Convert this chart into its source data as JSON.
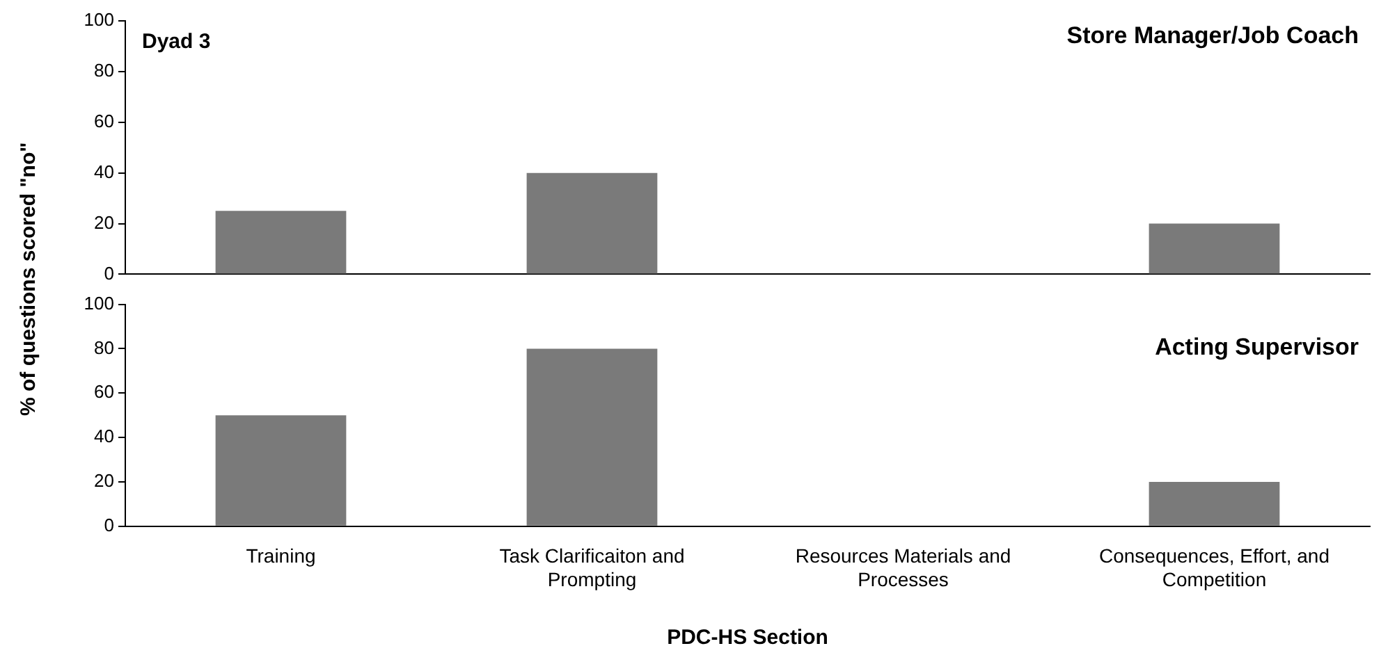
{
  "chart_data": [
    {
      "type": "bar",
      "title": "Store Manager/Job Coach",
      "annotations": [
        "Dyad 3"
      ],
      "categories": [
        null,
        null,
        null,
        null
      ],
      "values": [
        25,
        40,
        0,
        20
      ],
      "color": "#7a7a7a",
      "ylim": [
        0,
        100
      ],
      "yticks": [
        0,
        20,
        40,
        60,
        80,
        100
      ],
      "grid": false,
      "legend": false,
      "tick_labels": "y"
    },
    {
      "type": "bar",
      "title": "Acting Supervisor",
      "ylabel": "% of questions scored \"no\"",
      "xlabel": "PDC-HS Section",
      "categories": [
        "Training",
        "Task Clarificaiton and Prompting",
        "Resources Materials and Processes",
        "Consequences, Effort, and Competition"
      ],
      "values": [
        50,
        80,
        0,
        20
      ],
      "color": "#7a7a7a",
      "ylim": [
        0,
        100
      ],
      "yticks": [
        0,
        20,
        40,
        60,
        80,
        100
      ],
      "grid": false,
      "legend": false
    }
  ]
}
